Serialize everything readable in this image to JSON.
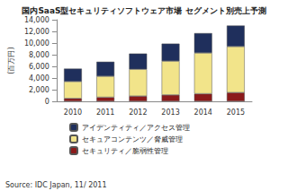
{
  "chart_data": {
    "type": "bar",
    "title": "国内SaaS型セキュリティソフトウェア市場 セグメント別売上予測",
    "y_label": "(百万円)",
    "annotations": [
      "Source: IDC Japan, 11/ 2011"
    ],
    "categories": [
      "2010",
      "2011",
      "2012",
      "2013",
      "2014",
      "2015"
    ],
    "series": [
      {
        "name": "セキュリティ／脆弱性管理",
        "color": "#8b1a1a",
        "values": [
          500,
          700,
          900,
          1100,
          1300,
          1500
        ]
      },
      {
        "name": "セキュアコンテンツ／脅威管理",
        "color": "#f2e48a",
        "values": [
          2900,
          3600,
          4600,
          5800,
          7000,
          7900
        ]
      },
      {
        "name": "アイデンティティ／アクセス管理",
        "color": "#1f2f5c",
        "values": [
          2200,
          2500,
          2700,
          3000,
          3400,
          3600
        ]
      }
    ],
    "stacked": true,
    "legend": "bottom",
    "grid": false,
    "ylim": [
      0,
      14000
    ],
    "yticks": [
      0,
      {
        "value": 2000,
        "label": "2,000"
      },
      {
        "value": 4000,
        "label": "4,000"
      },
      {
        "value": 6000,
        "label": "6,000"
      },
      {
        "value": 8000,
        "label": "8,000"
      },
      {
        "value": 10000,
        "label": "10,000"
      },
      {
        "value": 12000,
        "label": "12,000"
      },
      {
        "value": 14000,
        "label": "14,000"
      }
    ]
  }
}
